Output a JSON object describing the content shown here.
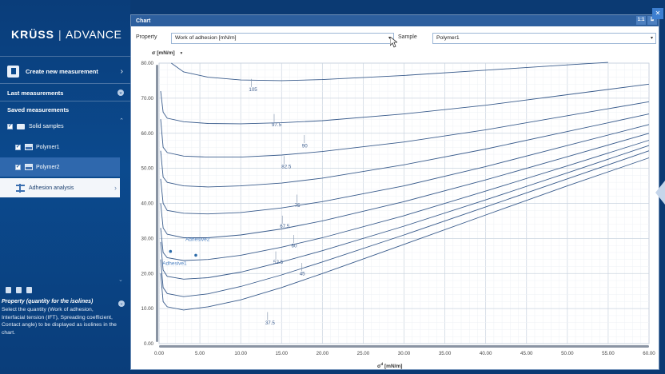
{
  "sidebar": {
    "brand": {
      "name": "KRÜSS",
      "separator": "|",
      "product": "ADVANCE"
    },
    "create": {
      "label": "Create new measurement"
    },
    "last": {
      "label": "Last measurements"
    },
    "saved": {
      "label": "Saved measurements"
    },
    "tree": [
      {
        "label": "Solid samples",
        "checked": true
      },
      {
        "label": "Polymer1",
        "checked": true
      },
      {
        "label": "Polymer2",
        "checked": true,
        "selected": true
      }
    ],
    "analysis": {
      "label": "Adhesion analysis"
    },
    "help": {
      "title": "Property (quantity for the isolines)",
      "text": "Select the quantity (Work of adhesion, Interfacial tension (IFT), Spreading coefficient, Contact angle) to be displayed as isolines in the chart."
    }
  },
  "window": {
    "title": "Chart",
    "ratio_button": "1:1",
    "property_label": "Property",
    "property_value": "Work of adhesion  [mN/m]",
    "sample_label": "Sample",
    "sample_value": "Polymer1"
  },
  "chart_data": {
    "type": "line",
    "ylabel_symbol": "σ",
    "ylabel_unit": "[mN/m]",
    "xlabel_symbol": "σ",
    "xlabel_unit": "[mN/m]",
    "xlim": [
      0,
      60
    ],
    "ylim": [
      0,
      80
    ],
    "xticks": [
      "0.00",
      "5.00",
      "10.00",
      "15.00",
      "20.00",
      "25.00",
      "30.00",
      "35.00",
      "40.00",
      "45.00",
      "50.00",
      "55.00",
      "60.00"
    ],
    "yticks": [
      "0.00",
      "10.00",
      "20.00",
      "30.00",
      "40.00",
      "50.00",
      "60.00",
      "70.00",
      "80.00"
    ],
    "isoline_values": [
      37.5,
      45,
      52.5,
      60,
      67.5,
      75,
      82.5,
      90,
      97.5,
      105
    ],
    "isoline_labels": [
      "37.5",
      "45",
      "52.5",
      "60",
      "67.5",
      "75",
      "82.5",
      "90",
      "97.5",
      "105"
    ],
    "isolines": [
      {
        "label": "37.5",
        "points": [
          [
            0.2,
            20
          ],
          [
            0.5,
            12
          ],
          [
            1,
            10.5
          ],
          [
            3,
            9.6
          ],
          [
            6,
            10.5
          ],
          [
            10,
            12.5
          ],
          [
            15,
            16
          ],
          [
            20,
            20
          ],
          [
            30,
            28.3
          ],
          [
            40,
            36.7
          ],
          [
            50,
            45
          ],
          [
            60,
            53
          ]
        ]
      },
      {
        "label": "45",
        "points": [
          [
            0.2,
            24
          ],
          [
            0.5,
            16
          ],
          [
            1,
            14.3
          ],
          [
            3,
            13.4
          ],
          [
            6,
            14.2
          ],
          [
            10,
            16.3
          ],
          [
            15,
            19.6
          ],
          [
            20,
            23.3
          ],
          [
            30,
            31
          ],
          [
            40,
            39
          ],
          [
            50,
            47
          ],
          [
            60,
            55
          ]
        ]
      },
      {
        "label": "52.5",
        "points": [
          [
            0.2,
            29
          ],
          [
            0.5,
            21
          ],
          [
            1,
            19.2
          ],
          [
            3,
            18.4
          ],
          [
            6,
            18.8
          ],
          [
            10,
            20.4
          ],
          [
            15,
            23.3
          ],
          [
            20,
            26.5
          ],
          [
            30,
            33.5
          ],
          [
            40,
            41
          ],
          [
            50,
            48.7
          ],
          [
            60,
            56.5
          ]
        ]
      },
      {
        "label": "60",
        "points": [
          [
            0.2,
            33
          ],
          [
            0.5,
            26
          ],
          [
            1,
            24.5
          ],
          [
            3,
            23.7
          ],
          [
            6,
            24
          ],
          [
            10,
            25.2
          ],
          [
            15,
            27.5
          ],
          [
            20,
            30.2
          ],
          [
            30,
            36.5
          ],
          [
            40,
            43.5
          ],
          [
            50,
            50.7
          ],
          [
            60,
            58
          ]
        ]
      },
      {
        "label": "67.5",
        "points": [
          [
            0.2,
            40
          ],
          [
            0.5,
            33
          ],
          [
            1,
            31.2
          ],
          [
            3,
            30.2
          ],
          [
            6,
            30.2
          ],
          [
            10,
            31
          ],
          [
            15,
            32.7
          ],
          [
            20,
            35
          ],
          [
            30,
            40.5
          ],
          [
            40,
            46.7
          ],
          [
            50,
            53.3
          ],
          [
            60,
            60
          ]
        ]
      },
      {
        "label": "75",
        "points": [
          [
            0.2,
            47
          ],
          [
            0.5,
            40
          ],
          [
            1,
            38
          ],
          [
            3,
            37.2
          ],
          [
            6,
            37
          ],
          [
            10,
            37.4
          ],
          [
            15,
            38.7
          ],
          [
            20,
            40.5
          ],
          [
            30,
            45
          ],
          [
            40,
            50.5
          ],
          [
            50,
            56.5
          ],
          [
            60,
            62.5
          ]
        ]
      },
      {
        "label": "82.5",
        "points": [
          [
            0.2,
            55
          ],
          [
            0.5,
            47.5
          ],
          [
            1,
            46
          ],
          [
            3,
            45
          ],
          [
            6,
            44.7
          ],
          [
            10,
            45
          ],
          [
            15,
            45.8
          ],
          [
            20,
            47.2
          ],
          [
            30,
            51
          ],
          [
            40,
            55.5
          ],
          [
            50,
            60.5
          ],
          [
            60,
            65.5
          ]
        ]
      },
      {
        "label": "90",
        "points": [
          [
            0.2,
            64
          ],
          [
            0.5,
            56
          ],
          [
            1,
            54.5
          ],
          [
            3,
            53.5
          ],
          [
            6,
            53.2
          ],
          [
            10,
            53.2
          ],
          [
            15,
            53.8
          ],
          [
            20,
            54.8
          ],
          [
            30,
            57.5
          ],
          [
            40,
            61
          ],
          [
            50,
            65
          ],
          [
            60,
            69
          ]
        ]
      },
      {
        "label": "97.5",
        "points": [
          [
            0.2,
            72
          ],
          [
            0.5,
            66
          ],
          [
            1,
            64.3
          ],
          [
            3,
            63.3
          ],
          [
            6,
            62.8
          ],
          [
            10,
            62.7
          ],
          [
            15,
            63
          ],
          [
            20,
            63.6
          ],
          [
            30,
            65.5
          ],
          [
            40,
            68
          ],
          [
            50,
            71
          ],
          [
            60,
            74
          ]
        ]
      },
      {
        "label": "105",
        "points": [
          [
            1.5,
            80
          ],
          [
            3,
            77.5
          ],
          [
            6,
            76
          ],
          [
            10,
            75.2
          ],
          [
            15,
            75
          ],
          [
            20,
            75.3
          ],
          [
            30,
            76.5
          ],
          [
            40,
            78
          ],
          [
            50,
            79.5
          ],
          [
            55,
            80.2
          ]
        ]
      }
    ],
    "points": [
      {
        "label": "Adhesive1",
        "x": 1.4,
        "y": 26.3
      },
      {
        "label": "Adhesive2",
        "x": 4.5,
        "y": 25.2
      }
    ],
    "grid": true
  }
}
